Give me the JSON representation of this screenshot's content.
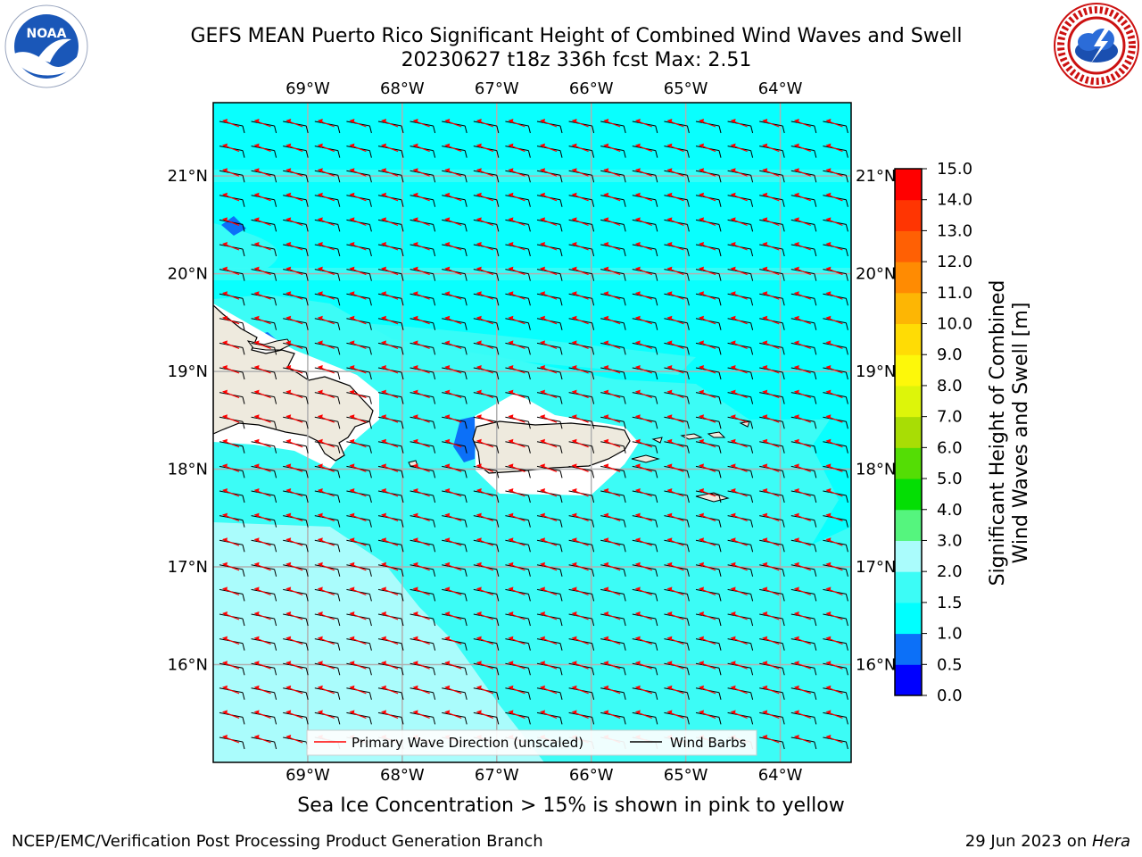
{
  "header": {
    "title_line1": "GEFS MEAN Puerto Rico Significant Height of Combined Wind Waves and Swell",
    "title_line2": "20230627 t18z 336h fcst   Max: 2.51"
  },
  "logos": {
    "left": "noaa-logo",
    "right": "national-weather-service-logo"
  },
  "chart_data": {
    "type": "heatmap",
    "map": "Puerto Rico region",
    "lon_ticks": [
      "69°W",
      "68°W",
      "67°W",
      "66°W",
      "65°W",
      "64°W"
    ],
    "lat_ticks": [
      "21°N",
      "20°N",
      "19°N",
      "18°N",
      "17°N",
      "16°N"
    ],
    "lon_range": [
      -70.0,
      -63.25
    ],
    "lat_range": [
      15.0,
      21.75
    ],
    "colorbar": {
      "label": "Significant Height of Combined Wind Waves and Swell [m]",
      "label_line1": "Significant Height of Combined",
      "label_line2": "Wind Waves and Swell [m]",
      "levels": [
        0.0,
        0.5,
        1.0,
        1.5,
        2.0,
        3.0,
        4.0,
        5.0,
        6.0,
        7.0,
        8.0,
        9.0,
        10.0,
        11.0,
        12.0,
        13.0,
        14.0,
        15.0
      ],
      "tick_labels": [
        "0.0",
        "0.5",
        "1.0",
        "1.5",
        "2.0",
        "3.0",
        "4.0",
        "5.0",
        "6.0",
        "7.0",
        "8.0",
        "9.0",
        "10.0",
        "11.0",
        "12.0",
        "13.0",
        "14.0",
        "15.0"
      ],
      "colors": [
        "#0000ff",
        "#0c70f8",
        "#00ffff",
        "#3cfcf6",
        "#aafcfc",
        "#55f57e",
        "#04de04",
        "#54dd05",
        "#a8dd05",
        "#ddf50a",
        "#fdf80a",
        "#ffdc05",
        "#fdb604",
        "#ff8b02",
        "#ff6004",
        "#ff3502",
        "#ff0000"
      ]
    },
    "legend": {
      "position": "bottom-center",
      "entries": [
        "Primary Wave Direction (unscaled)",
        "Wind Barbs"
      ],
      "colors": [
        "#ff0000",
        "#000000"
      ]
    },
    "max_value": 2.51,
    "grid": true,
    "land_color": "#eeeade"
  },
  "note": "Sea Ice Concentration > 15% is shown in pink to yellow",
  "footer": {
    "left": "NCEP/EMC/Verification Post Processing Product Generation Branch",
    "date": "29 Jun 2023 on ",
    "machine": "Hera"
  }
}
